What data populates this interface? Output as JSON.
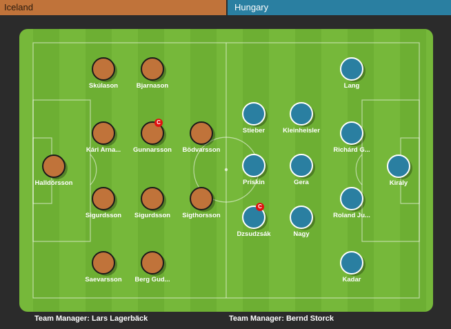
{
  "home": {
    "name": "Iceland",
    "color": "#c0733a",
    "manager_label": "Team Manager:",
    "manager": "Lars Lagerbäck",
    "players": [
      {
        "name": "Halldórsson"
      },
      {
        "name": "Skúlason"
      },
      {
        "name": "Kári Arna..."
      },
      {
        "name": "Sigurdsson"
      },
      {
        "name": "Saevarsson"
      },
      {
        "name": "Bjarnason"
      },
      {
        "name": "Gunnarsson",
        "captain": true
      },
      {
        "name": "Sigurdsson"
      },
      {
        "name": "Berg Gud..."
      },
      {
        "name": "Bödvarsson"
      },
      {
        "name": "Sigthorsson"
      }
    ]
  },
  "away": {
    "name": "Hungary",
    "color": "#2a7fa1",
    "manager_label": "Team Manager:",
    "manager": "Bernd Storck",
    "players": [
      {
        "name": "Kiraly"
      },
      {
        "name": "Lang"
      },
      {
        "name": "Richárd G..."
      },
      {
        "name": "Roland Ju..."
      },
      {
        "name": "Kadar"
      },
      {
        "name": "Kleinheisler"
      },
      {
        "name": "Gera"
      },
      {
        "name": "Nagy"
      },
      {
        "name": "Stieber"
      },
      {
        "name": "Priskin"
      },
      {
        "name": "Dzsudzsák",
        "captain": true
      }
    ]
  },
  "captain_mark": "C",
  "pitch_color": "#76b83a"
}
